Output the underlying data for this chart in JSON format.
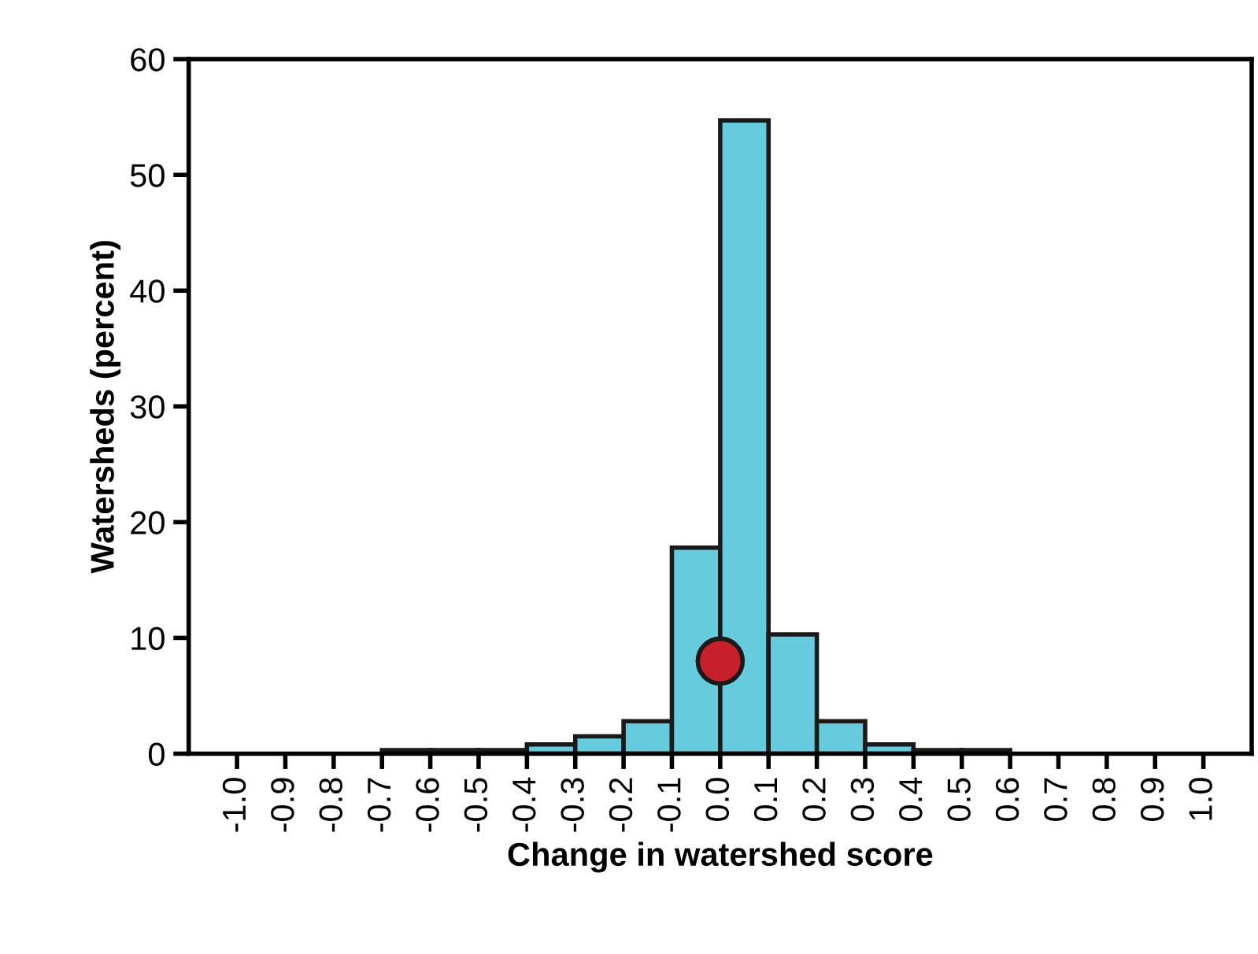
{
  "chart_data": {
    "type": "histogram",
    "xlabel": "Change in watershed score",
    "ylabel": "Watersheds (percent)",
    "bins": [
      -1.0,
      -0.9,
      -0.8,
      -0.7,
      -0.6,
      -0.5,
      -0.4,
      -0.3,
      -0.2,
      -0.1,
      0.0,
      0.1,
      0.2,
      0.3,
      0.4,
      0.5,
      0.6,
      0.7,
      0.8,
      0.9,
      1.0
    ],
    "values": [
      0,
      0,
      0,
      0.3,
      0.3,
      0.3,
      0.8,
      1.5,
      2.8,
      17.8,
      54.7,
      10.3,
      2.8,
      0.8,
      0.3,
      0.3,
      0,
      0,
      0,
      0
    ],
    "color": "#66cbdc",
    "series": [
      {
        "type": "scatter",
        "x": [
          0.0
        ],
        "values": [
          8
        ],
        "color": "#c8202a"
      }
    ],
    "marker": "circle",
    "xlim": [
      -1.1,
      1.1
    ],
    "ylim": [
      0,
      60
    ],
    "xticks": [
      {
        "value": -1,
        "label": "-1.0"
      },
      -0.9,
      -0.8,
      -0.7,
      -0.6,
      -0.5,
      -0.4,
      -0.3,
      -0.2,
      -0.1,
      {
        "value": 0,
        "label": "0.0"
      },
      0.1,
      0.2,
      0.3,
      0.4,
      0.5,
      0.6,
      0.7,
      0.8,
      0.9,
      {
        "value": 1,
        "label": "1.0"
      }
    ],
    "yticks": [
      0,
      10,
      20,
      30,
      40,
      50,
      60
    ],
    "grid": false
  }
}
